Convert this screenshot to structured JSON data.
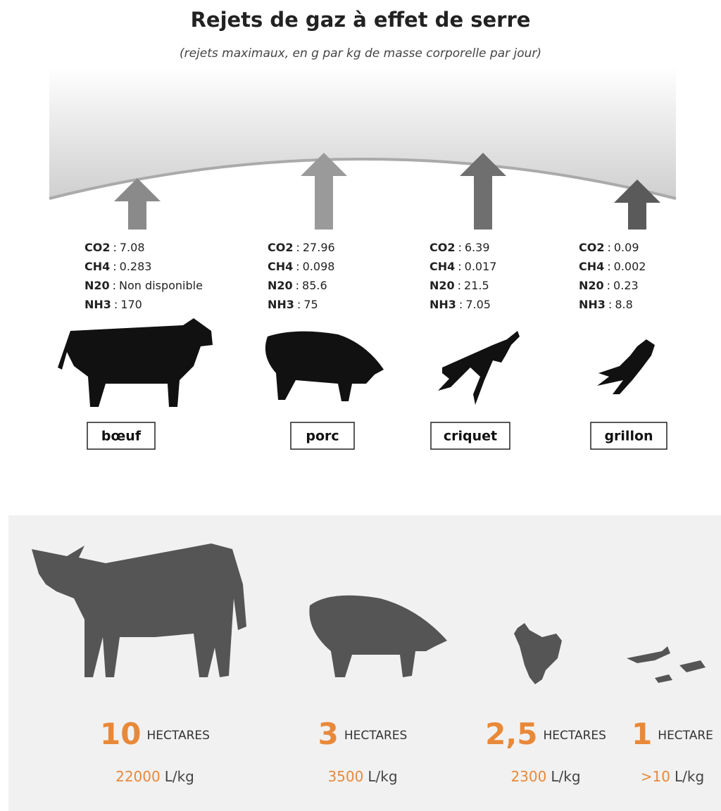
{
  "header": {
    "title": "Rejets de gaz à effet de serre",
    "subtitle": "(rejets maximaux, en g par kg de masse corporelle par jour)"
  },
  "separator": ":",
  "emissions": [
    {
      "animal": "bœuf",
      "gases": [
        {
          "gas": "CO2",
          "value": "7.08"
        },
        {
          "gas": "CH4",
          "value": "0.283"
        },
        {
          "gas": "N20",
          "value": "Non disponible"
        },
        {
          "gas": "NH3",
          "value": "170"
        }
      ]
    },
    {
      "animal": "porc",
      "gases": [
        {
          "gas": "CO2",
          "value": "27.96"
        },
        {
          "gas": "CH4",
          "value": "0.098"
        },
        {
          "gas": "N20",
          "value": "85.6"
        },
        {
          "gas": "NH3",
          "value": "75"
        }
      ]
    },
    {
      "animal": "criquet",
      "gases": [
        {
          "gas": "CO2",
          "value": "6.39"
        },
        {
          "gas": "CH4",
          "value": "0.017"
        },
        {
          "gas": "N20",
          "value": "21.5"
        },
        {
          "gas": "NH3",
          "value": "7.05"
        }
      ]
    },
    {
      "animal": "grillon",
      "gases": [
        {
          "gas": "CO2",
          "value": "0.09"
        },
        {
          "gas": "CH4",
          "value": "0.002"
        },
        {
          "gas": "N20",
          "value": "0.23"
        },
        {
          "gas": "NH3",
          "value": "8.8"
        }
      ]
    }
  ],
  "land_water": [
    {
      "area": "10",
      "area_unit": "HECTARES",
      "water": "22000",
      "water_unit": "L/kg"
    },
    {
      "area": "3",
      "area_unit": "HECTARES",
      "water": "3500",
      "water_unit": "L/kg"
    },
    {
      "area": "2,5",
      "area_unit": "HECTARES",
      "water": "2300",
      "water_unit": "L/kg"
    },
    {
      "area": "1",
      "area_unit": "HECTARE",
      "water": ">10",
      "water_unit": "L/kg"
    }
  ]
}
